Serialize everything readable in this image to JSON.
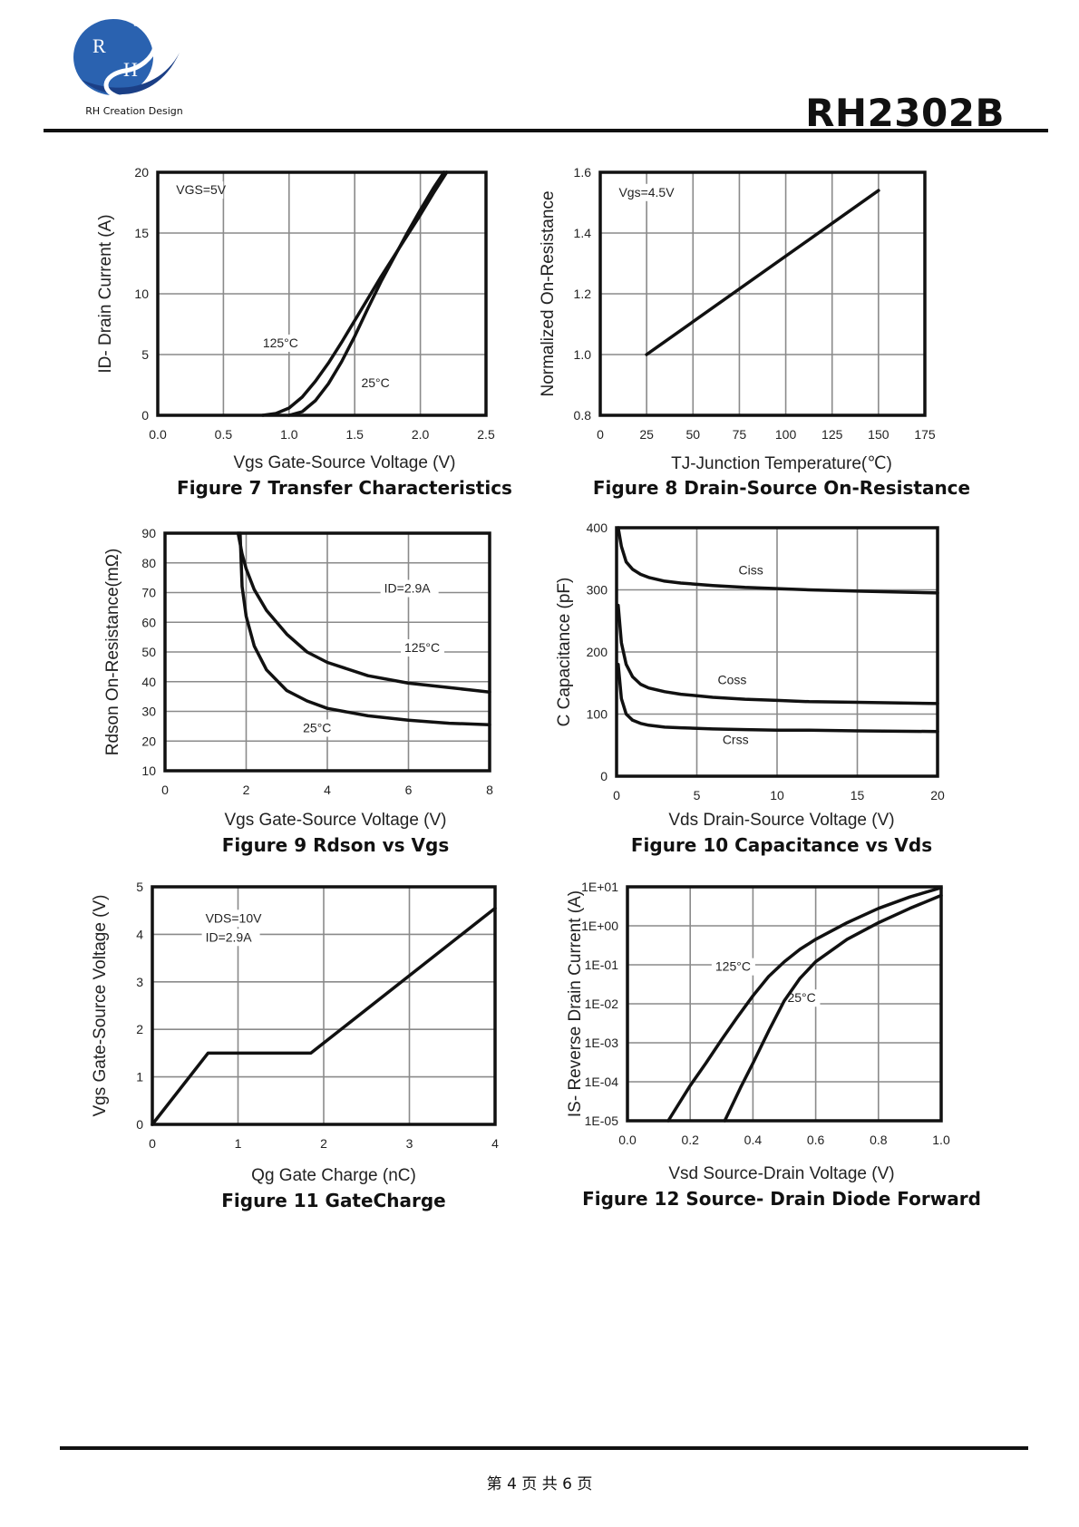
{
  "header": {
    "logo_letters": [
      "R",
      "H"
    ],
    "logo_caption": "RH Creation Design",
    "part_number": "RH2302B",
    "brand_color": "#2a62b0"
  },
  "footer": {
    "page_text": "第 4 页 共 6 页"
  },
  "chart_data": [
    {
      "id": "fig7",
      "type": "line",
      "title": "Figure 7 Transfer Characteristics",
      "xlabel": "Vgs Gate-Source Voltage (V)",
      "ylabel": "ID- Drain Current (A)",
      "xlim": [
        0,
        2.5
      ],
      "ylim": [
        0,
        20
      ],
      "xticks": [
        0,
        0.5,
        1.0,
        1.5,
        2.0,
        2.5
      ],
      "xtick_labels": [
        "0.0",
        "0.5",
        "1.0",
        "1.5",
        "2.0",
        "2.5"
      ],
      "yticks": [
        0,
        5,
        10,
        15,
        20
      ],
      "ytick_labels": [
        "0",
        "5",
        "10",
        "15",
        "20"
      ],
      "annotations": [
        {
          "text": "VGS=5V",
          "x": 0.14,
          "y": 18.2
        },
        {
          "text": "125°C",
          "x": 0.8,
          "y": 5.6
        },
        {
          "text": "25°C",
          "x": 1.55,
          "y": 2.3
        }
      ],
      "series": [
        {
          "name": "125°C",
          "x": [
            0.8,
            0.9,
            1.0,
            1.1,
            1.2,
            1.3,
            1.4,
            1.5,
            1.6,
            1.7,
            1.8,
            1.9,
            2.0,
            2.1,
            2.2
          ],
          "y": [
            0,
            0.15,
            0.6,
            1.5,
            2.8,
            4.3,
            6.0,
            7.8,
            9.6,
            11.4,
            13.1,
            14.8,
            16.5,
            18.3,
            20.0
          ]
        },
        {
          "name": "25°C",
          "x": [
            1.0,
            1.1,
            1.2,
            1.3,
            1.4,
            1.5,
            1.6,
            1.7,
            1.8,
            1.9,
            2.0,
            2.1,
            2.18
          ],
          "y": [
            0,
            0.3,
            1.2,
            2.6,
            4.4,
            6.5,
            8.8,
            11.0,
            13.0,
            15.0,
            16.9,
            18.7,
            20.0
          ]
        }
      ]
    },
    {
      "id": "fig8",
      "type": "line",
      "title": "Figure 8 Drain-Source On-Resistance",
      "xlabel": "TJ-Junction Temperature(℃)",
      "ylabel": "Normalized On-Resistance",
      "xlim": [
        0,
        175
      ],
      "ylim": [
        0.8,
        1.6
      ],
      "xticks": [
        0,
        25,
        50,
        75,
        100,
        125,
        150,
        175
      ],
      "xtick_labels": [
        "0",
        "25",
        "50",
        "75",
        "100",
        "125",
        "150",
        "175"
      ],
      "yticks": [
        0.8,
        1.0,
        1.2,
        1.4,
        1.6
      ],
      "ytick_labels": [
        "0.8",
        "1.0",
        "1.2",
        "1.4",
        "1.6"
      ],
      "annotations": [
        {
          "text": "Vgs=4.5V",
          "x": 10,
          "y": 1.52
        }
      ],
      "series": [
        {
          "x": [
            25,
            150
          ],
          "y": [
            1.0,
            1.54
          ]
        }
      ]
    },
    {
      "id": "fig9",
      "type": "line",
      "title": "Figure 9 Rdson vs Vgs",
      "xlabel": "Vgs Gate-Source Voltage (V)",
      "ylabel": "Rdson On-Resistance(mΩ)",
      "xlim": [
        0,
        8
      ],
      "ylim": [
        10,
        90
      ],
      "xticks": [
        0,
        2,
        4,
        6,
        8
      ],
      "xtick_labels": [
        "0",
        "2",
        "4",
        "6",
        "8"
      ],
      "yticks": [
        10,
        20,
        30,
        40,
        50,
        60,
        70,
        80,
        90
      ],
      "ytick_labels": [
        "10",
        "20",
        "30",
        "40",
        "50",
        "60",
        "70",
        "80",
        "90"
      ],
      "annotations": [
        {
          "text": "ID=2.9A",
          "x": 5.4,
          "y": 70
        },
        {
          "text": "125°C",
          "x": 5.9,
          "y": 50
        },
        {
          "text": "25°C",
          "x": 3.4,
          "y": 23
        }
      ],
      "series": [
        {
          "name": "125°C",
          "x": [
            1.8,
            1.9,
            2.0,
            2.2,
            2.5,
            3.0,
            3.5,
            4.0,
            5.0,
            6.0,
            7.0,
            8.0
          ],
          "y": [
            90,
            83,
            78,
            71,
            64,
            56,
            50,
            46.5,
            42,
            39.5,
            38,
            36.5
          ]
        },
        {
          "name": "25°C",
          "x": [
            1.85,
            1.9,
            2.0,
            2.2,
            2.5,
            3.0,
            3.5,
            4.0,
            5.0,
            6.0,
            7.0,
            8.0
          ],
          "y": [
            90,
            72,
            62,
            52,
            44,
            37,
            33.5,
            31,
            28.5,
            27,
            26,
            25.5
          ]
        }
      ]
    },
    {
      "id": "fig10",
      "type": "line",
      "title": "Figure 10 Capacitance vs Vds",
      "xlabel": "Vds Drain-Source Voltage (V)",
      "ylabel": "C Capacitance (pF)",
      "xlim": [
        0,
        20
      ],
      "ylim": [
        0,
        400
      ],
      "xticks": [
        0,
        5,
        10,
        15,
        20
      ],
      "xtick_labels": [
        "0",
        "5",
        "10",
        "15",
        "20"
      ],
      "yticks": [
        0,
        100,
        200,
        300,
        400
      ],
      "ytick_labels": [
        "0",
        "100",
        "200",
        "300",
        "400"
      ],
      "annotations": [
        {
          "text": "Ciss",
          "x": 7.6,
          "y": 325
        },
        {
          "text": "Coss",
          "x": 6.3,
          "y": 148
        },
        {
          "text": "Crss",
          "x": 6.6,
          "y": 52
        }
      ],
      "series": [
        {
          "name": "Ciss",
          "x": [
            0.1,
            0.3,
            0.6,
            1.0,
            1.5,
            2.0,
            3.0,
            4.0,
            6.0,
            8.0,
            10.0,
            12.0,
            15.0,
            20.0
          ],
          "y": [
            400,
            370,
            345,
            333,
            325,
            320,
            314,
            311,
            307,
            304,
            302,
            300,
            298,
            295
          ]
        },
        {
          "name": "Coss",
          "x": [
            0.1,
            0.3,
            0.6,
            1.0,
            1.5,
            2.0,
            3.0,
            4.0,
            6.0,
            8.0,
            10.0,
            12.0,
            15.0,
            20.0
          ],
          "y": [
            275,
            215,
            180,
            160,
            148,
            142,
            136,
            132,
            127,
            124,
            122,
            120,
            119,
            117
          ]
        },
        {
          "name": "Crss",
          "x": [
            0.1,
            0.3,
            0.6,
            1.0,
            1.5,
            2.0,
            3.0,
            4.0,
            6.0,
            8.0,
            10.0,
            12.0,
            15.0,
            20.0
          ],
          "y": [
            180,
            125,
            100,
            90,
            85,
            82,
            79,
            78,
            76,
            75,
            74,
            74,
            73,
            72
          ]
        }
      ]
    },
    {
      "id": "fig11",
      "type": "line",
      "title": "Figure 11 GateCharge",
      "xlabel": "Qg Gate Charge (nC)",
      "ylabel": "Vgs Gate-Source Voltage (V)",
      "xlim": [
        0,
        4
      ],
      "ylim": [
        0,
        5
      ],
      "xticks": [
        0,
        1,
        2,
        3,
        4
      ],
      "xtick_labels": [
        "0",
        "1",
        "2",
        "3",
        "4"
      ],
      "yticks": [
        0,
        1,
        2,
        3,
        4,
        5
      ],
      "ytick_labels": [
        "0",
        "1",
        "2",
        "3",
        "4",
        "5"
      ],
      "annotations": [
        {
          "text": "VDS=10V",
          "x": 0.62,
          "y": 4.25
        },
        {
          "text": "ID=2.9A",
          "x": 0.62,
          "y": 3.85
        }
      ],
      "series": [
        {
          "x": [
            0,
            0.65,
            1.85,
            4.0
          ],
          "y": [
            0,
            1.5,
            1.5,
            4.55
          ]
        }
      ]
    },
    {
      "id": "fig12",
      "type": "line",
      "title": "Figure 12 Source- Drain Diode Forward",
      "xlabel": "Vsd Source-Drain Voltage (V)",
      "ylabel": "IS- Reverse Drain Current (A)",
      "xscale": "log-y",
      "xlim": [
        0,
        1.0
      ],
      "ylim": [
        1e-05,
        10
      ],
      "xticks": [
        0,
        0.2,
        0.4,
        0.6,
        0.8,
        1.0
      ],
      "xtick_labels": [
        "0.0",
        "0.2",
        "0.4",
        "0.6",
        "0.8",
        "1.0"
      ],
      "yticks": [
        1e-05,
        0.0001,
        0.001,
        0.01,
        0.1,
        1,
        10
      ],
      "ytick_labels": [
        "1E-05",
        "1E-04",
        "1E-03",
        "1E-02",
        "1E-01",
        "1E+00",
        "1E+01"
      ],
      "annotations": [
        {
          "text": "125°C",
          "x": 0.28,
          "y": 0.07
        },
        {
          "text": "25°C",
          "x": 0.51,
          "y": 0.011
        }
      ],
      "series": [
        {
          "name": "125°C",
          "x": [
            0.13,
            0.2,
            0.25,
            0.3,
            0.35,
            0.4,
            0.45,
            0.5,
            0.55,
            0.6,
            0.7,
            0.8,
            0.9,
            1.0
          ],
          "y": [
            1e-05,
            8e-05,
            0.0003,
            0.0012,
            0.0045,
            0.016,
            0.05,
            0.12,
            0.25,
            0.45,
            1.2,
            2.8,
            5.5,
            9.5
          ]
        },
        {
          "name": "25°C",
          "x": [
            0.31,
            0.36,
            0.4,
            0.45,
            0.5,
            0.55,
            0.6,
            0.7,
            0.8,
            0.9,
            1.0
          ],
          "y": [
            1e-05,
            7e-05,
            0.0003,
            0.002,
            0.012,
            0.045,
            0.12,
            0.45,
            1.2,
            2.8,
            6.0
          ]
        }
      ]
    }
  ]
}
